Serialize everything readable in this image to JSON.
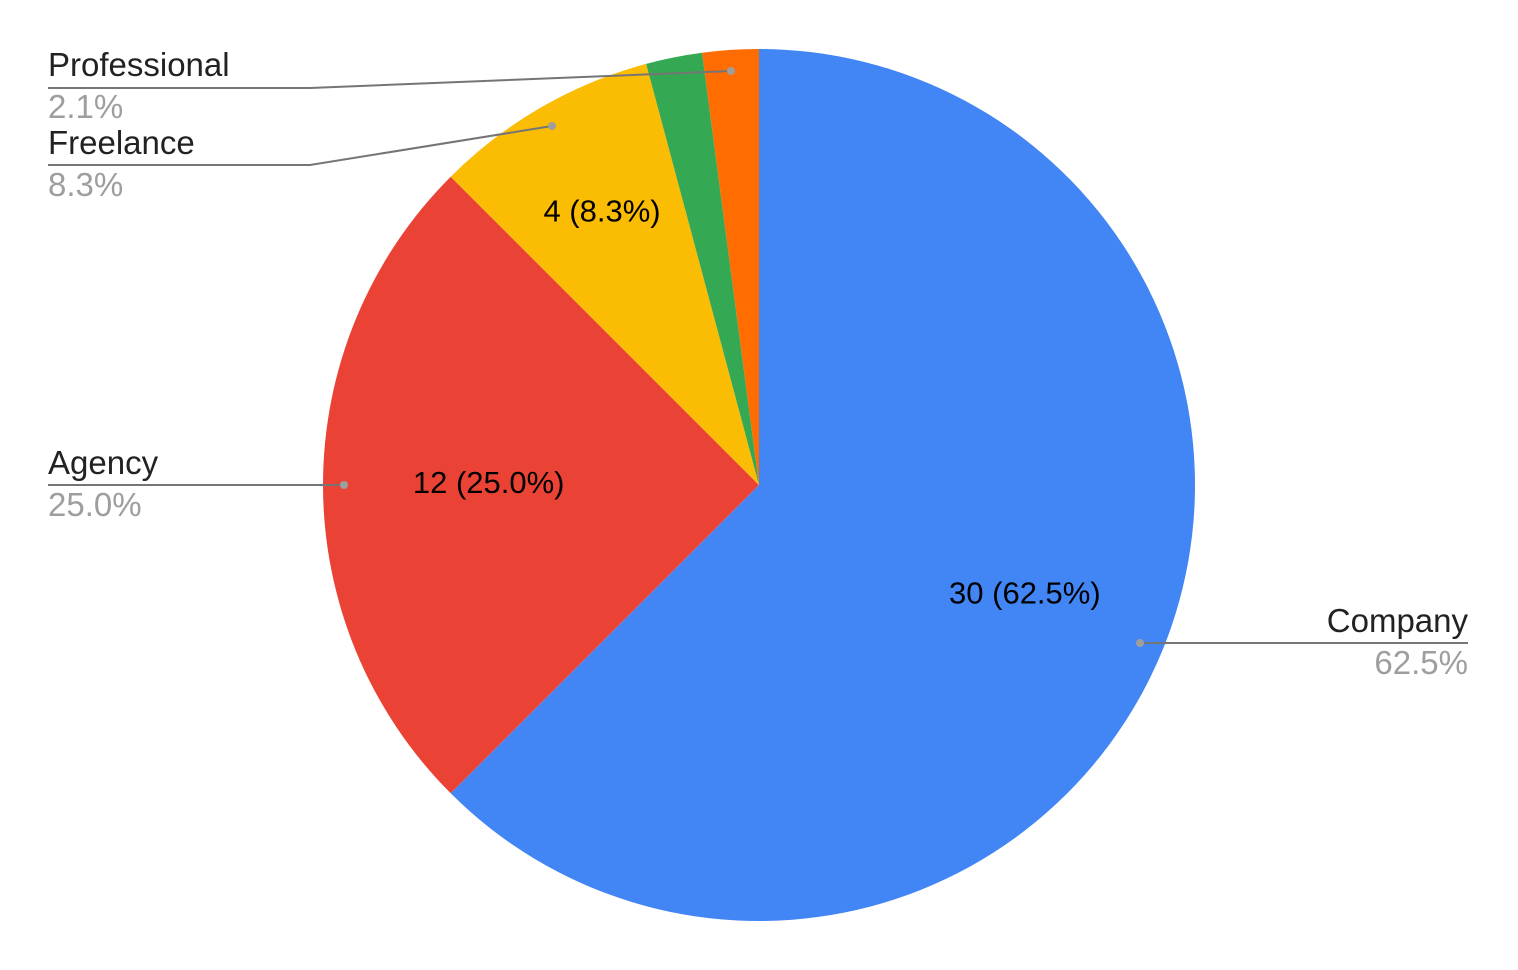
{
  "chart_data": {
    "type": "pie",
    "title": "",
    "categories": [
      "Company",
      "Agency",
      "Freelance",
      "Professional",
      ""
    ],
    "values": [
      30,
      12,
      4,
      1,
      1
    ],
    "colors": [
      "#4285f4",
      "#ea4335",
      "#fbbc04",
      "#34a853",
      "#ff6d01"
    ],
    "slice_labels": [
      "30 (62.5%)",
      "12 (25.0%)",
      "4 (8.3%)",
      "",
      ""
    ],
    "legend": [
      {
        "name": "Company",
        "percent": "62.5%"
      },
      {
        "name": "Agency",
        "percent": "25.0%"
      },
      {
        "name": "Freelance",
        "percent": "8.3%"
      },
      {
        "name": "Professional",
        "percent": "2.1%"
      }
    ],
    "legend_placement": "labeled leader lines around the pie"
  }
}
